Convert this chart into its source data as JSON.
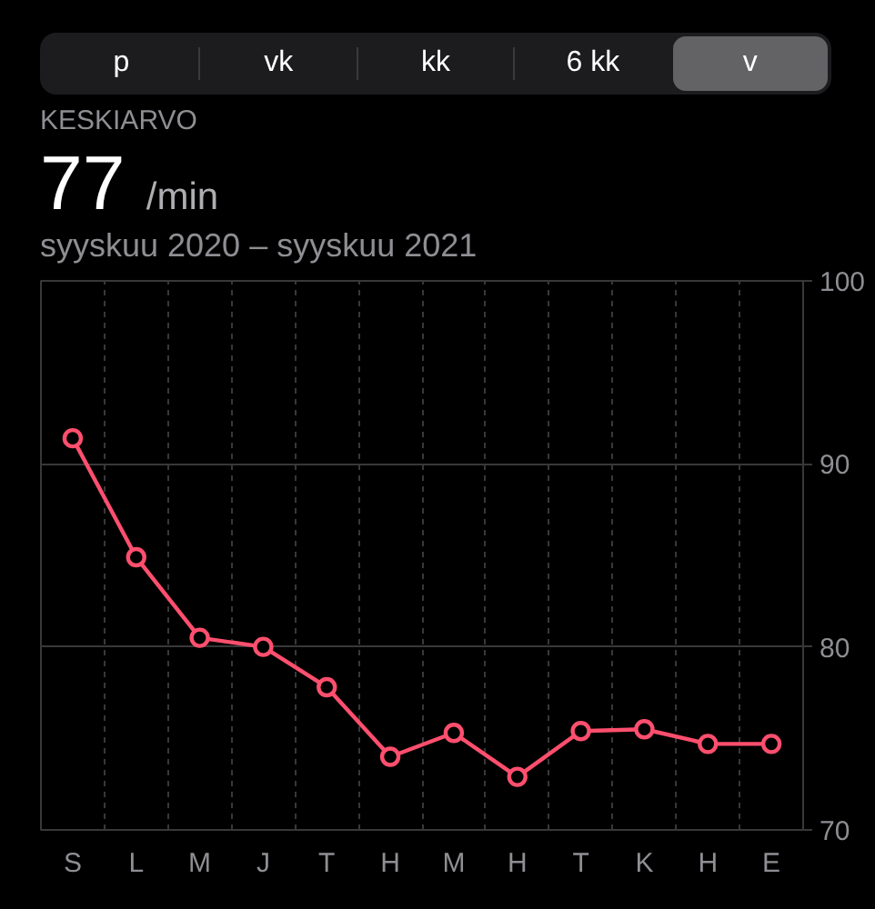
{
  "chart_data": {
    "type": "line",
    "title": "KESKIARVO",
    "subtitle": "syyskuu 2020 – syyskuu 2021",
    "annotations": [
      "p",
      "vk",
      "kk",
      "6 kk",
      "v",
      "77 /min"
    ],
    "categories": [
      "S",
      "L",
      "M",
      "J",
      "T",
      "H",
      "M",
      "H",
      "T",
      "K",
      "H",
      "E"
    ],
    "series": [
      {
        "color": "#ff4f6e",
        "values": [
          91.4,
          84.9,
          80.5,
          80.0,
          77.8,
          74.0,
          75.3,
          72.9,
          75.4,
          75.5,
          74.7,
          74.7
        ]
      }
    ],
    "ylim": [
      70,
      100
    ],
    "yticks": [
      70,
      80,
      90,
      100
    ],
    "grid": true,
    "marker": "circle",
    "line_style": "solid"
  }
}
